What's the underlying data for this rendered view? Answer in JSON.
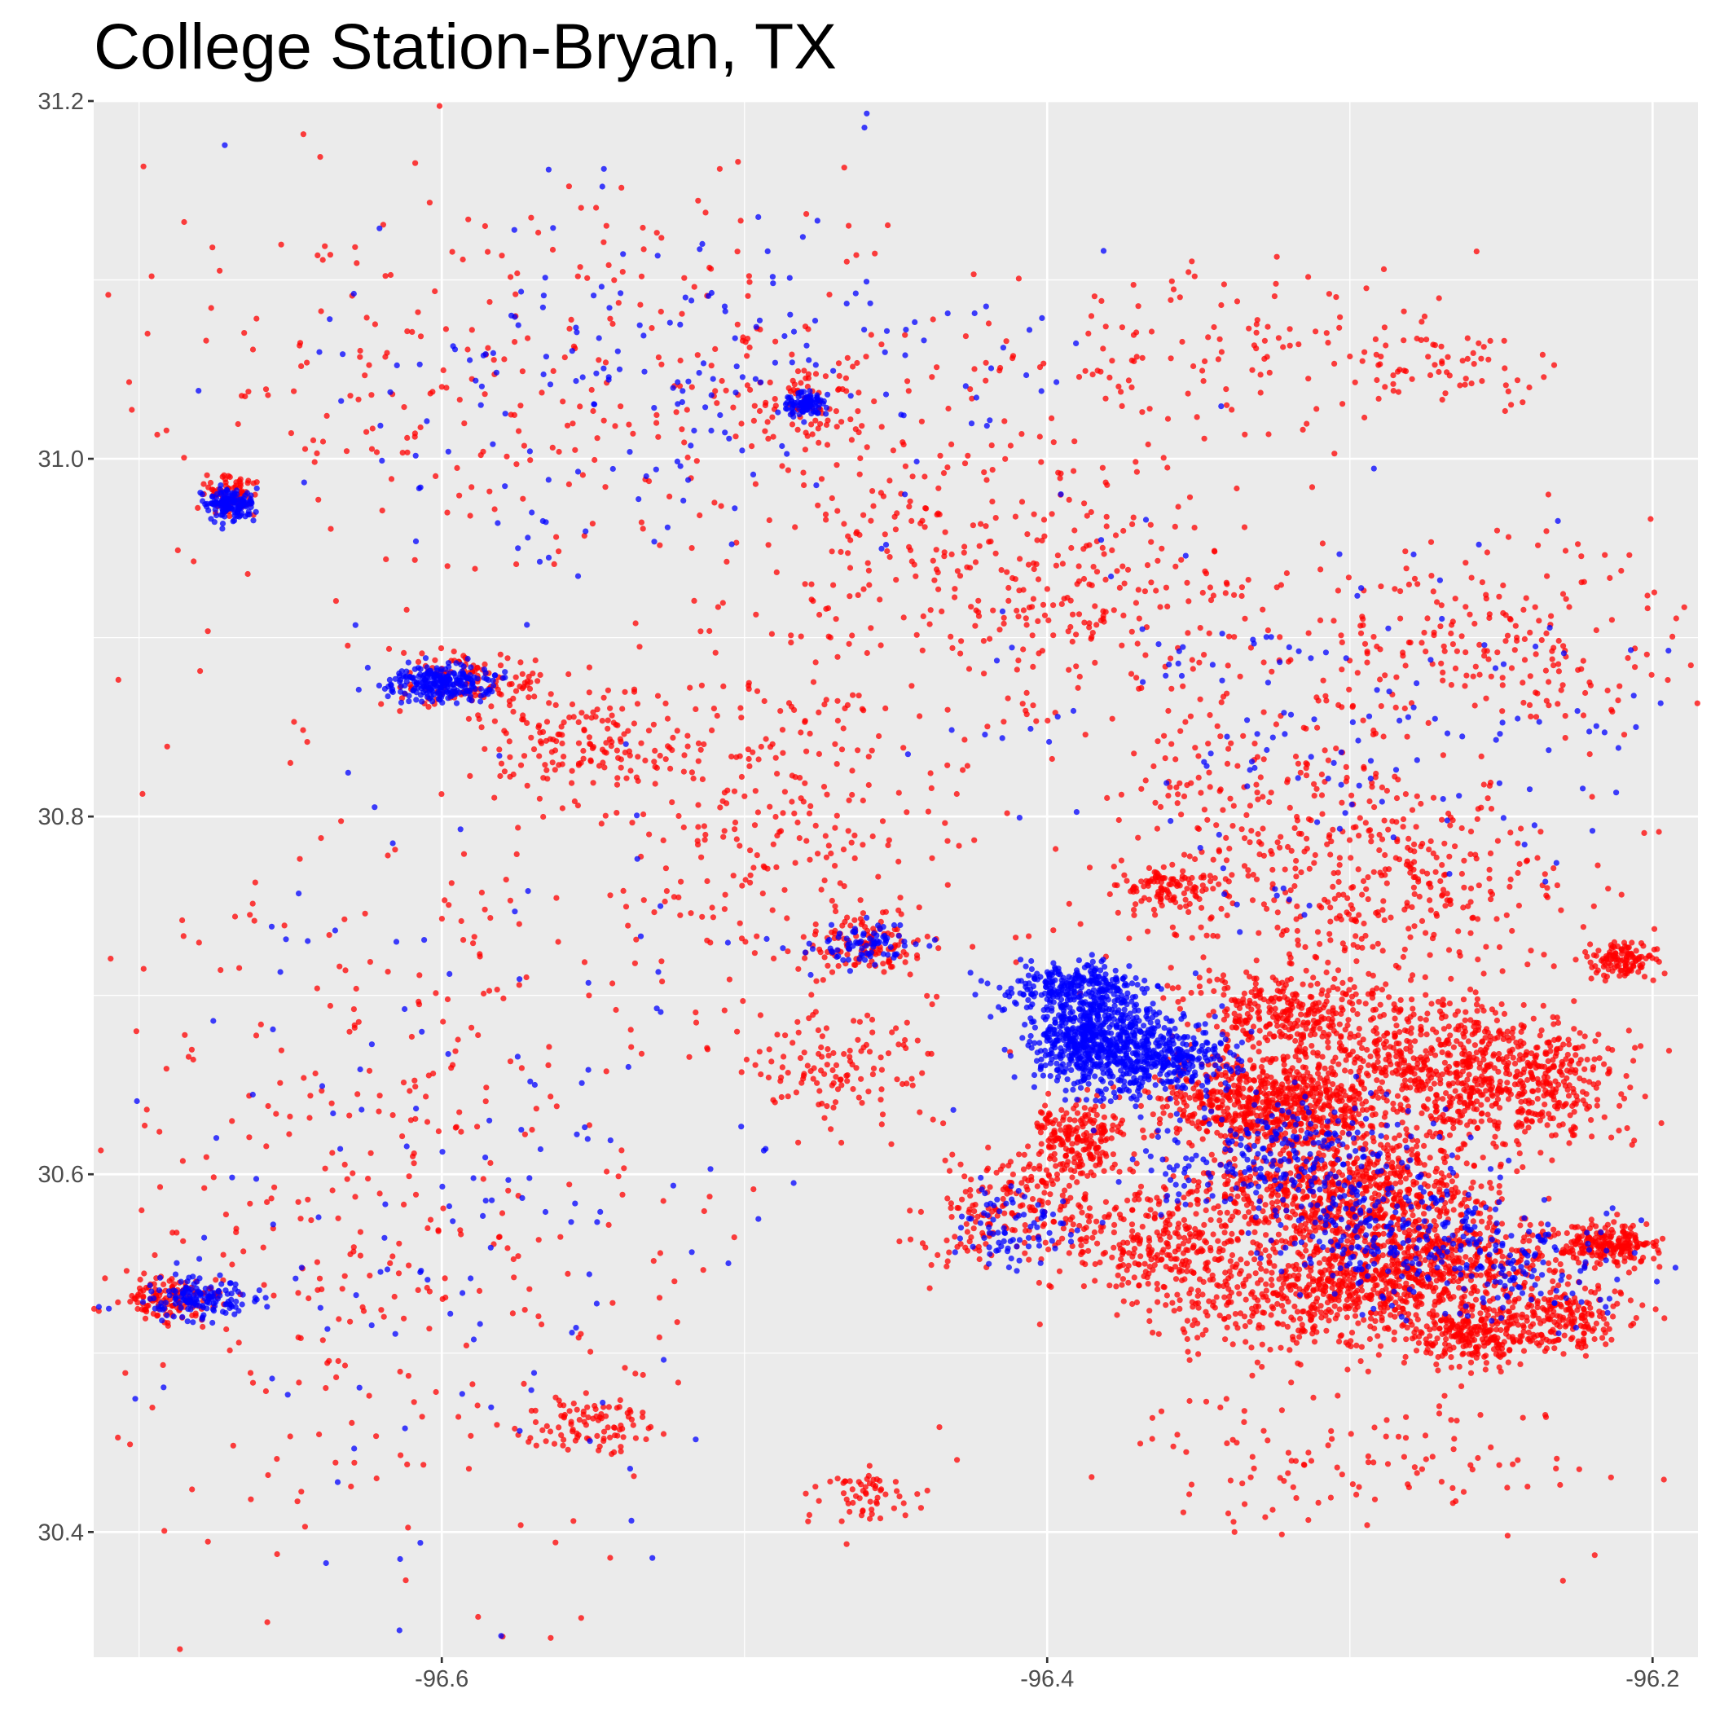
{
  "chart_data": {
    "type": "scatter",
    "title": "College Station-Bryan, TX",
    "xlabel": "",
    "ylabel": "",
    "xlim": [
      -96.715,
      -96.185
    ],
    "ylim": [
      30.33,
      31.2
    ],
    "x_ticks": [
      -96.6,
      -96.4,
      -96.2
    ],
    "x_tick_labels": [
      "-96.6",
      "-96.4",
      "-96.2"
    ],
    "y_ticks": [
      30.4,
      30.6,
      30.8,
      31.0,
      31.2
    ],
    "y_tick_labels": [
      "30.4",
      "30.6",
      "30.8",
      "31.0",
      "31.2"
    ],
    "grid": true,
    "legend": "none",
    "colors": {
      "panel": "#ebebeb",
      "grid": "#ffffff",
      "series_red": "#ff0000",
      "series_blue": "#0000ff"
    },
    "series": [
      {
        "color": "#ff0000",
        "clusters": [
          {
            "x": -96.325,
            "y": 30.64,
            "rx": 0.035,
            "ry": 0.025,
            "n": 700
          },
          {
            "x": -96.3,
            "y": 30.59,
            "rx": 0.04,
            "ry": 0.03,
            "n": 700
          },
          {
            "x": -96.275,
            "y": 30.55,
            "rx": 0.04,
            "ry": 0.03,
            "n": 600
          },
          {
            "x": -96.27,
            "y": 30.66,
            "rx": 0.04,
            "ry": 0.04,
            "n": 550
          },
          {
            "x": -96.31,
            "y": 30.53,
            "rx": 0.05,
            "ry": 0.03,
            "n": 450
          },
          {
            "x": -96.36,
            "y": 30.56,
            "rx": 0.03,
            "ry": 0.03,
            "n": 300
          },
          {
            "x": -96.32,
            "y": 30.69,
            "rx": 0.03,
            "ry": 0.02,
            "n": 300
          },
          {
            "x": -96.26,
            "y": 30.51,
            "rx": 0.02,
            "ry": 0.015,
            "n": 220
          },
          {
            "x": -96.24,
            "y": 30.65,
            "rx": 0.03,
            "ry": 0.03,
            "n": 300
          },
          {
            "x": -96.215,
            "y": 30.56,
            "rx": 0.015,
            "ry": 0.01,
            "n": 220
          },
          {
            "x": -96.23,
            "y": 30.52,
            "rx": 0.02,
            "ry": 0.015,
            "n": 180
          },
          {
            "x": -96.21,
            "y": 30.72,
            "rx": 0.01,
            "ry": 0.01,
            "n": 120
          },
          {
            "x": -96.39,
            "y": 30.62,
            "rx": 0.015,
            "ry": 0.02,
            "n": 220
          },
          {
            "x": -96.41,
            "y": 30.58,
            "rx": 0.03,
            "ry": 0.03,
            "n": 200
          },
          {
            "x": -96.36,
            "y": 30.76,
            "rx": 0.015,
            "ry": 0.01,
            "n": 100
          },
          {
            "x": -96.28,
            "y": 30.76,
            "rx": 0.05,
            "ry": 0.05,
            "n": 250
          },
          {
            "x": -96.33,
            "y": 30.8,
            "rx": 0.06,
            "ry": 0.08,
            "n": 300
          },
          {
            "x": -96.46,
            "y": 30.73,
            "rx": 0.02,
            "ry": 0.015,
            "n": 120
          },
          {
            "x": -96.55,
            "y": 30.84,
            "rx": 0.03,
            "ry": 0.03,
            "n": 150
          },
          {
            "x": -96.59,
            "y": 30.875,
            "rx": 0.02,
            "ry": 0.015,
            "n": 120
          },
          {
            "x": -96.69,
            "y": 30.53,
            "rx": 0.015,
            "ry": 0.012,
            "n": 130
          },
          {
            "x": -96.67,
            "y": 30.98,
            "rx": 0.008,
            "ry": 0.01,
            "n": 70
          },
          {
            "x": -96.48,
            "y": 31.03,
            "rx": 0.02,
            "ry": 0.02,
            "n": 80
          },
          {
            "x": -96.55,
            "y": 30.46,
            "rx": 0.02,
            "ry": 0.015,
            "n": 90
          },
          {
            "x": -96.46,
            "y": 30.42,
            "rx": 0.015,
            "ry": 0.015,
            "n": 60
          },
          {
            "x": -96.47,
            "y": 30.66,
            "rx": 0.03,
            "ry": 0.03,
            "n": 120
          },
          {
            "x": -96.25,
            "y": 30.9,
            "rx": 0.06,
            "ry": 0.05,
            "n": 200
          },
          {
            "x": -96.34,
            "y": 31.06,
            "rx": 0.06,
            "ry": 0.05,
            "n": 120
          },
          {
            "x": -96.27,
            "y": 31.05,
            "rx": 0.03,
            "ry": 0.02,
            "n": 60
          },
          {
            "x": -96.38,
            "y": 30.92,
            "rx": 0.06,
            "ry": 0.05,
            "n": 150
          },
          {
            "x": -96.62,
            "y": 30.6,
            "rx": 0.09,
            "ry": 0.2,
            "n": 400
          },
          {
            "x": -96.57,
            "y": 31.05,
            "rx": 0.12,
            "ry": 0.1,
            "n": 300
          },
          {
            "x": -96.49,
            "y": 30.8,
            "rx": 0.05,
            "ry": 0.1,
            "n": 250
          },
          {
            "x": -96.43,
            "y": 30.95,
            "rx": 0.07,
            "ry": 0.1,
            "n": 250
          },
          {
            "x": -96.3,
            "y": 30.44,
            "rx": 0.08,
            "ry": 0.04,
            "n": 120
          }
        ]
      },
      {
        "color": "#0000ff",
        "clusters": [
          {
            "x": -96.385,
            "y": 30.675,
            "rx": 0.02,
            "ry": 0.025,
            "n": 650
          },
          {
            "x": -96.39,
            "y": 30.705,
            "rx": 0.02,
            "ry": 0.012,
            "n": 250
          },
          {
            "x": -96.36,
            "y": 30.665,
            "rx": 0.02,
            "ry": 0.02,
            "n": 300
          },
          {
            "x": -96.32,
            "y": 30.61,
            "rx": 0.04,
            "ry": 0.03,
            "n": 250
          },
          {
            "x": -96.29,
            "y": 30.57,
            "rx": 0.04,
            "ry": 0.03,
            "n": 200
          },
          {
            "x": -96.25,
            "y": 30.55,
            "rx": 0.04,
            "ry": 0.03,
            "n": 150
          },
          {
            "x": -96.6,
            "y": 30.875,
            "rx": 0.015,
            "ry": 0.01,
            "n": 250
          },
          {
            "x": -96.67,
            "y": 30.975,
            "rx": 0.007,
            "ry": 0.008,
            "n": 150
          },
          {
            "x": -96.68,
            "y": 30.53,
            "rx": 0.015,
            "ry": 0.01,
            "n": 150
          },
          {
            "x": -96.48,
            "y": 31.03,
            "rx": 0.006,
            "ry": 0.006,
            "n": 100
          },
          {
            "x": -96.46,
            "y": 30.73,
            "rx": 0.015,
            "ry": 0.01,
            "n": 80
          },
          {
            "x": -96.41,
            "y": 30.57,
            "rx": 0.02,
            "ry": 0.02,
            "n": 80
          },
          {
            "x": -96.6,
            "y": 30.6,
            "rx": 0.1,
            "ry": 0.2,
            "n": 150
          },
          {
            "x": -96.52,
            "y": 31.05,
            "rx": 0.12,
            "ry": 0.1,
            "n": 200
          },
          {
            "x": -96.3,
            "y": 30.85,
            "rx": 0.1,
            "ry": 0.1,
            "n": 150
          }
        ]
      }
    ]
  }
}
